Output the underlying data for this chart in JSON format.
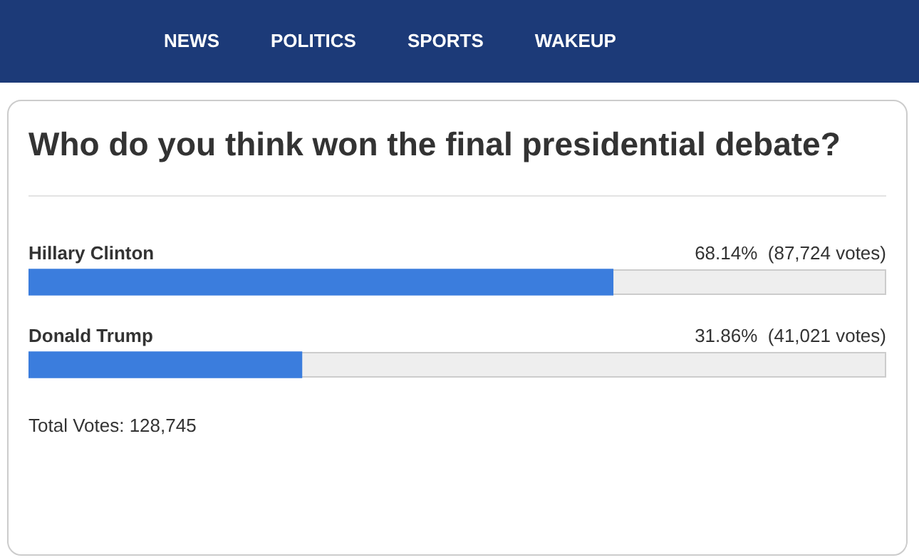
{
  "chart_data": {
    "type": "bar",
    "orientation": "horizontal",
    "title": "Who do you think won the final presidential debate?",
    "categories": [
      "Hillary Clinton",
      "Donald Trump"
    ],
    "values": [
      68.14,
      31.86
    ],
    "value_labels": [
      "68.14%  (87,724 votes)",
      "31.86%  (41,021 votes)"
    ],
    "color": "#3b7ddd",
    "xlim": [
      0,
      100
    ],
    "tick_labels": false,
    "annotations": [
      "NEWS",
      "POLITICS",
      "SPORTS",
      "WAKEUP",
      "Total Votes: 128,745"
    ]
  }
}
